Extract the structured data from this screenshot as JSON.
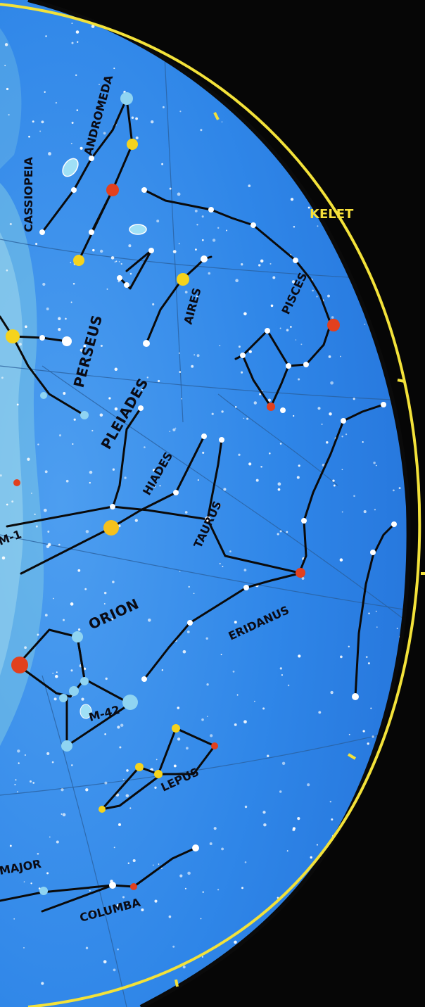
{
  "map": {
    "direction_label": "KELET",
    "constellations": {
      "cassiopeia": "CASSIOPEIA",
      "andromeda": "ANDROMEDA",
      "perseus": "PERSEUS",
      "aires": "AIRES",
      "pisces": "PISCES",
      "pleiades": "PLEIADES",
      "hiades": "HIADES",
      "taurus": "TAURUS",
      "m1": "M-1",
      "orion": "ORION",
      "eridanus": "ERIDANUS",
      "m42": "M-42",
      "lepus": "LEPUS",
      "major": "MAJOR",
      "columba": "COLUMBA"
    },
    "colors": {
      "sky": "#2f86e8",
      "sky_light": "#5aa8f0",
      "milky_way": "#7cc6e6",
      "horizon": "#f3e23a",
      "background": "#060606",
      "star_yellow": "#f5d31c",
      "star_red": "#e2401e",
      "star_blue": "#8fd4f2",
      "star_white": "#ffffff"
    }
  }
}
